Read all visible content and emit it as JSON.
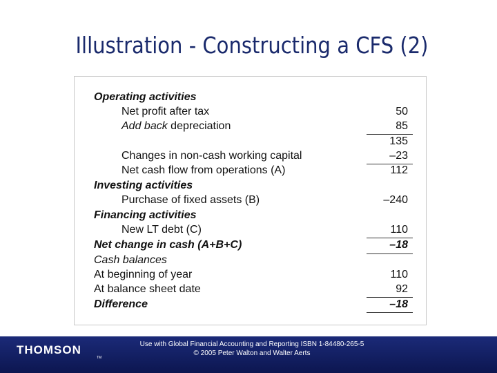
{
  "header": {
    "title": "Illustration - Constructing a CFS (2)"
  },
  "table": {
    "rows": [
      {
        "label": "Operating activities"
      },
      {
        "label": "Net profit after tax",
        "value": "50"
      },
      {
        "label_parts": [
          "Add back",
          "depreciation"
        ],
        "value": "85"
      },
      {
        "value": "135"
      },
      {
        "label": "Changes in non-cash working capital",
        "value": "–23"
      },
      {
        "label": "Net cash flow from operations (A)",
        "value": "112"
      },
      {
        "label": "Investing activities"
      },
      {
        "label": "Purchase of fixed assets (B)",
        "value": "–240"
      },
      {
        "label": "Financing activities"
      },
      {
        "label": "New LT debt (C)",
        "value": "110"
      },
      {
        "label": "Net change in cash (A+B+C)",
        "value": "–18"
      },
      {
        "label": "Cash balances"
      },
      {
        "label": "At beginning of year",
        "value": "110"
      },
      {
        "label": "At balance sheet date",
        "value": "92"
      },
      {
        "label": "Difference",
        "value": "–18"
      }
    ]
  },
  "footer": {
    "logo": "THOMSON",
    "trademark": "TM",
    "lines": [
      "Use with Global Financial Accounting and Reporting ISBN 1-84480-265-5",
      "© 2005 Peter Walton and Walter Aerts"
    ]
  }
}
